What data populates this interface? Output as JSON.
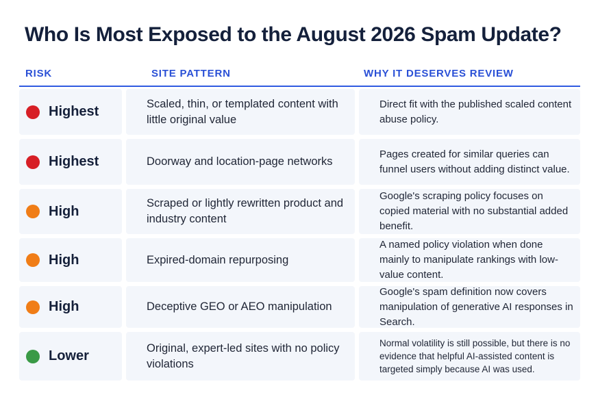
{
  "title": "Who Is Most Exposed to the August 2026 Spam Update?",
  "headers": {
    "risk": "RISK",
    "pattern": "SITE PATTERN",
    "why": "WHY IT DESERVES REVIEW"
  },
  "colors": {
    "accent": "#2f5ae0",
    "highest": "#d71f26",
    "high": "#f07d17",
    "lower": "#3a9a46"
  },
  "rows": [
    {
      "risk": "Highest",
      "pattern": "Scaled, thin, or templated content with little original value",
      "why": "Direct fit with the published scaled content abuse policy."
    },
    {
      "risk": "Highest",
      "pattern": "Doorway and location-page networks",
      "why": "Pages created for similar queries can funnel users without adding distinct value."
    },
    {
      "risk": "High",
      "pattern": "Scraped or lightly rewritten product and industry content",
      "why": "Google's scraping policy focuses on copied material with no substantial added benefit."
    },
    {
      "risk": "High",
      "pattern": "Expired-domain repurposing",
      "why": "A named policy violation when done mainly to manipulate rankings with low-value content."
    },
    {
      "risk": "High",
      "pattern": "Deceptive GEO or AEO manipulation",
      "why": "Google's spam definition now covers manipulation of generative AI responses in Search."
    },
    {
      "risk": "Lower",
      "pattern": "Original, expert-led sites with no policy violations",
      "why": "Normal volatility is still possible, but there is no evidence that helpful AI-assisted content is targeted simply because AI was used."
    }
  ]
}
